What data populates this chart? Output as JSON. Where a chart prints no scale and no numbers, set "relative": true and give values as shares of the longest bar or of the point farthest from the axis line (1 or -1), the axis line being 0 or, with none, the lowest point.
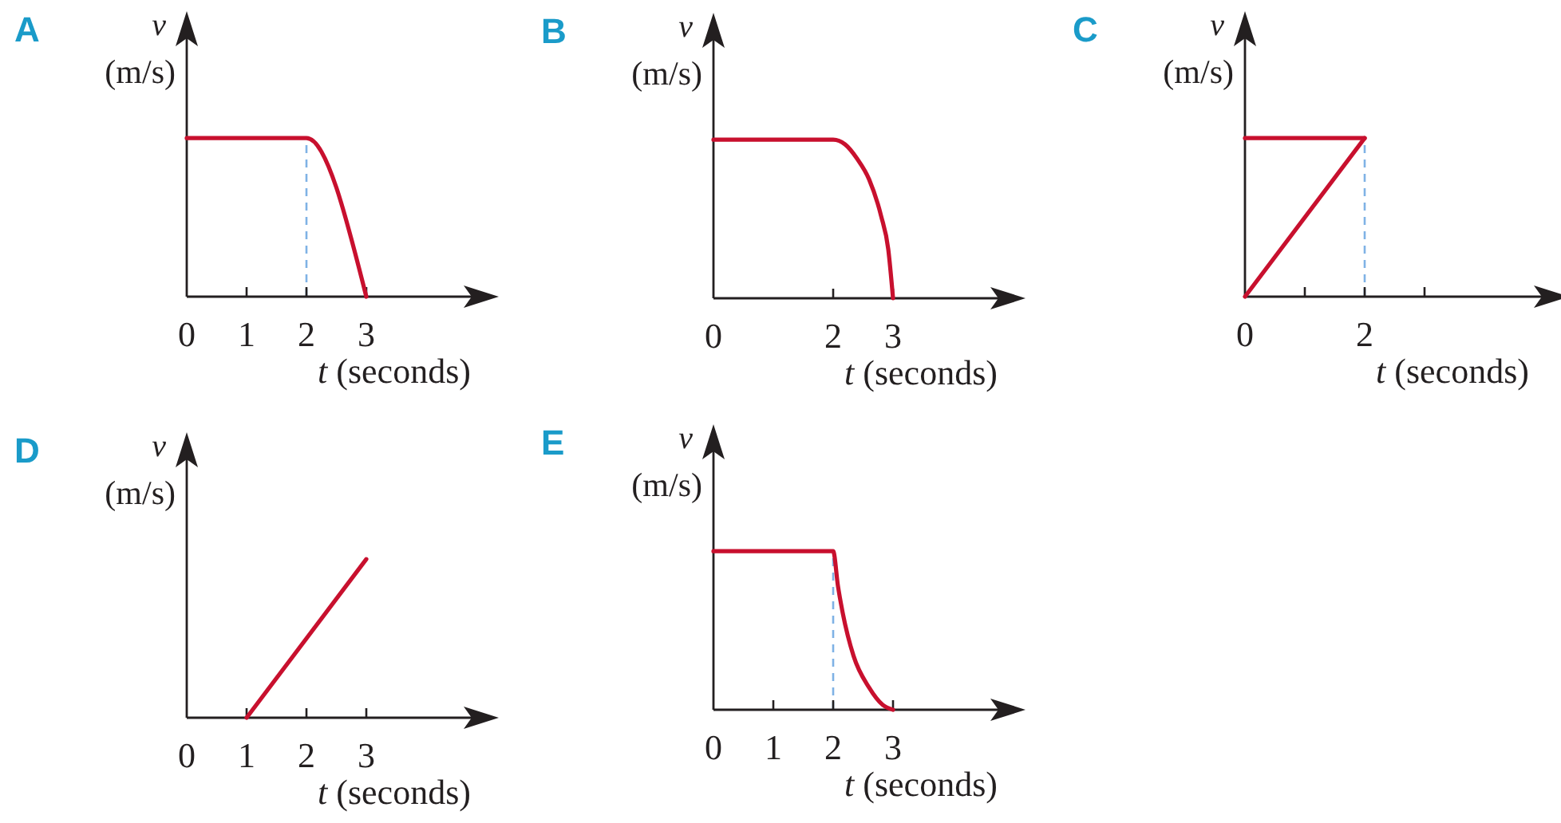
{
  "chart_data": [
    {
      "type": "line",
      "title": "A",
      "xlabel": "t (seconds)",
      "ylabel": "v (m/s)",
      "relative": true,
      "xlim": [
        0,
        5
      ],
      "xticks": [
        0,
        1,
        2,
        3
      ],
      "series": [
        {
          "color": "#c8102e",
          "x": [
            0,
            2,
            3
          ],
          "values": [
            1,
            1,
            0
          ]
        }
      ],
      "ref_lines": [
        {
          "axis": "x",
          "value": 2,
          "color": "#7fb2e5",
          "line_style": "dashed"
        }
      ]
    },
    {
      "type": "line",
      "title": "B",
      "xlabel": "t (seconds)",
      "ylabel": "v (m/s)",
      "relative": true,
      "xlim": [
        0,
        5
      ],
      "xticks": [
        0,
        2,
        3
      ],
      "series": [
        {
          "color": "#c8102e",
          "x": [
            0,
            2,
            2.2,
            2.4,
            2.6,
            2.8,
            2.92,
            3
          ],
          "values": [
            1,
            1,
            0.97,
            0.88,
            0.75,
            0.52,
            0.31,
            0
          ]
        }
      ]
    },
    {
      "type": "line",
      "title": "C",
      "xlabel": "t (seconds)",
      "ylabel": "v (m/s)",
      "relative": true,
      "xlim": [
        0,
        5.2
      ],
      "xticks": [
        0,
        {
          "value": 1,
          "label": null
        },
        2,
        {
          "value": 3,
          "label": null
        }
      ],
      "series": [
        {
          "color": "#c8102e",
          "x": [
            0,
            2
          ],
          "values": [
            1,
            1
          ]
        },
        {
          "color": "#c8102e",
          "x": [
            0,
            2
          ],
          "values": [
            0,
            1
          ]
        }
      ],
      "ref_lines": [
        {
          "axis": "x",
          "value": 2,
          "color": "#7fb2e5",
          "line_style": "dashed"
        }
      ]
    },
    {
      "type": "line",
      "title": "D",
      "xlabel": "t (seconds)",
      "ylabel": "v (m/s)",
      "relative": true,
      "xlim": [
        0,
        5
      ],
      "xticks": [
        0,
        1,
        2,
        3
      ],
      "series": [
        {
          "color": "#c8102e",
          "x": [
            1,
            3
          ],
          "values": [
            0,
            1
          ]
        }
      ]
    },
    {
      "type": "line",
      "title": "E",
      "xlabel": "t (seconds)",
      "ylabel": "v (m/s)",
      "relative": true,
      "xlim": [
        0,
        5
      ],
      "xticks": [
        0,
        1,
        2,
        3
      ],
      "series": [
        {
          "color": "#c8102e",
          "x": [
            0,
            2,
            2.08,
            2.16,
            2.34,
            2.6,
            2.83,
            3
          ],
          "values": [
            1,
            1,
            0.78,
            0.61,
            0.34,
            0.14,
            0.03,
            0
          ]
        }
      ],
      "ref_lines": [
        {
          "axis": "x",
          "value": 2,
          "color": "#7fb2e5",
          "line_style": "dashed"
        }
      ]
    }
  ]
}
